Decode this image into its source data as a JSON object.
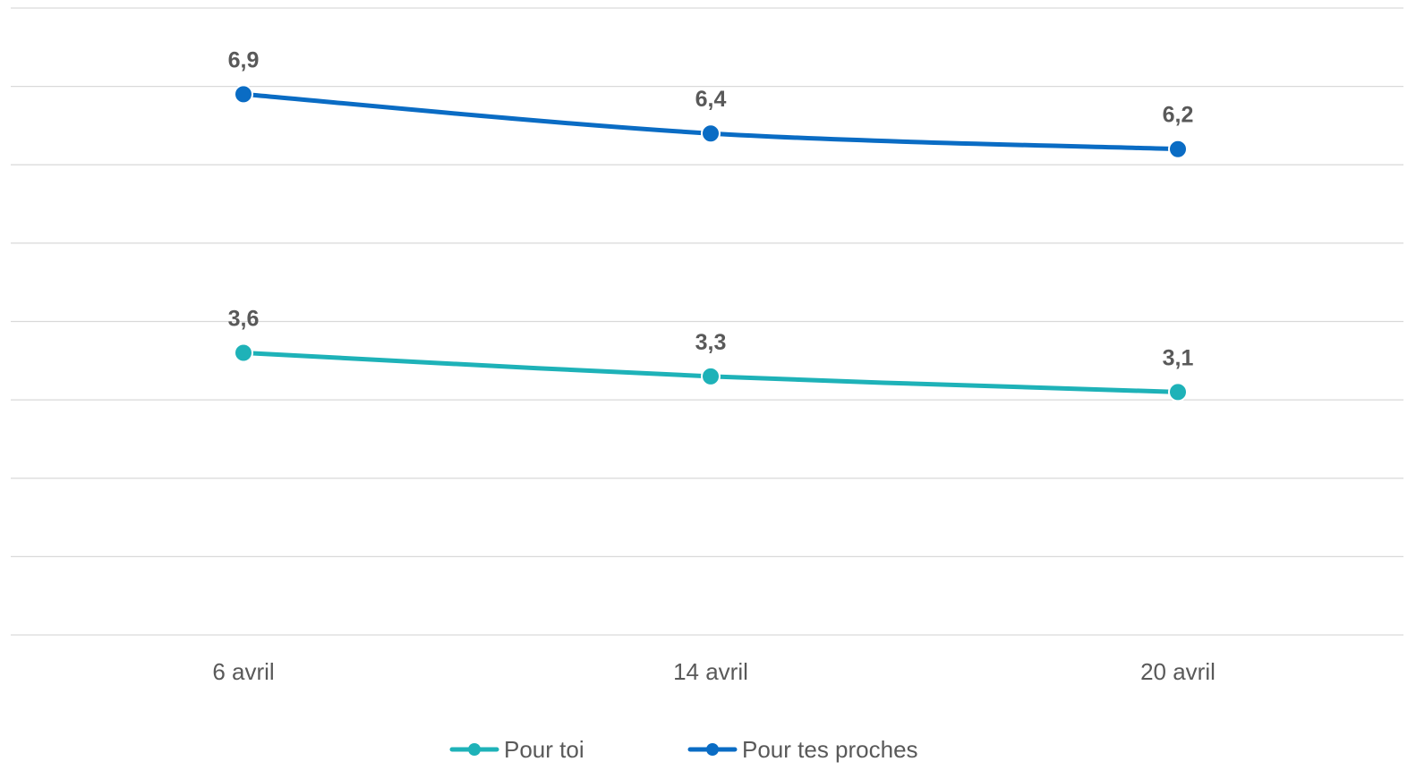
{
  "chart_data": {
    "type": "line",
    "categories": [
      "6 avril",
      "14 avril",
      "20 avril"
    ],
    "series": [
      {
        "name": "Pour toi",
        "values": [
          3.6,
          3.3,
          3.1
        ],
        "labels": [
          "3,6",
          "3,3",
          "3,1"
        ],
        "color": "#1eb2b8"
      },
      {
        "name": "Pour tes proches",
        "values": [
          6.9,
          6.4,
          6.2
        ],
        "labels": [
          "6,9",
          "6,4",
          "6,2"
        ],
        "color": "#0a6cc4"
      }
    ],
    "ylim": [
      0,
      8
    ],
    "y_gridlines": [
      0,
      1,
      2,
      3,
      4,
      5,
      6,
      7,
      8
    ],
    "grid": true,
    "smooth": true,
    "legend_position": "bottom"
  },
  "colors": {
    "grid": "#d9d9d9",
    "text": "#595959"
  }
}
